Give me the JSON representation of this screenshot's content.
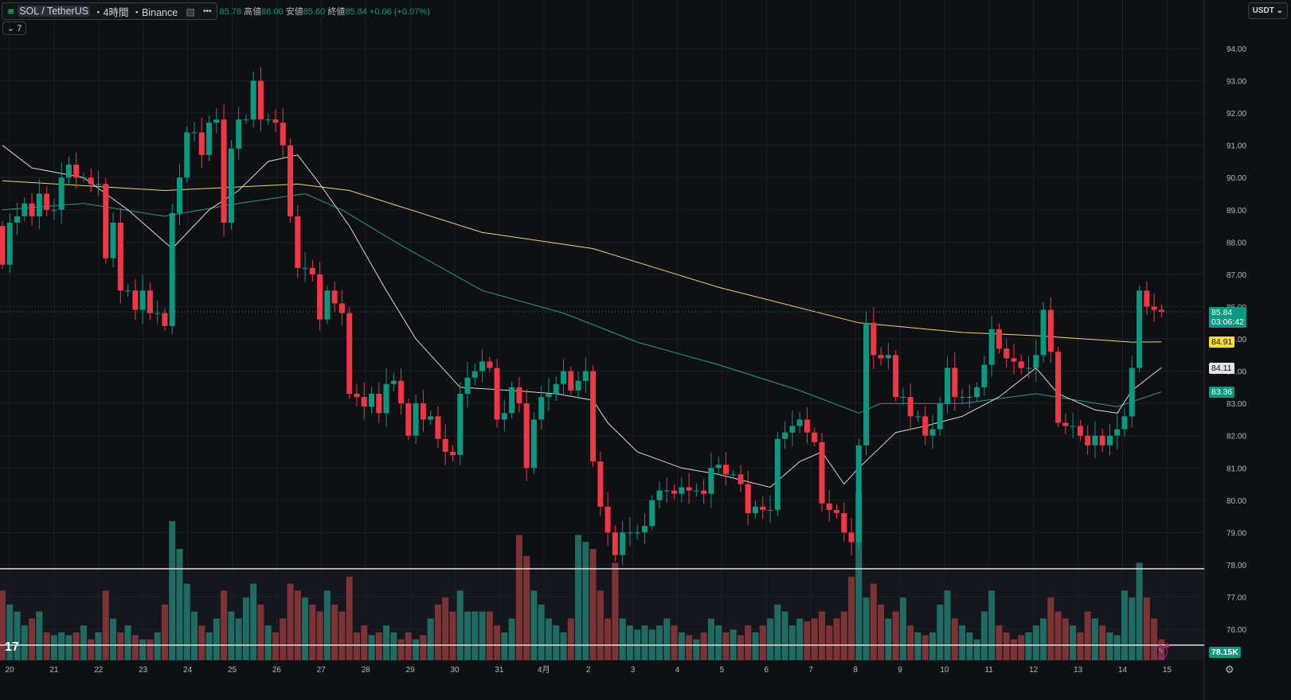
{
  "header": {
    "symbol": "SOL / TetherUS",
    "interval": "・4時間",
    "exchange": "・Binance",
    "more": "•••",
    "open_value": "85.78",
    "high_label": "高値",
    "high_value": "86.00",
    "low_label": "安値",
    "low_value": "85.60",
    "close_label": "終値",
    "close_value": "85.84",
    "change": "+0.06 (+0.07%)",
    "indicator_count": "7",
    "currency": "USDT"
  },
  "badges": {
    "price": "85.84",
    "countdown": "03:06:42",
    "ma_yellow": "84.91",
    "ma_white": "84.11",
    "ma_teal": "83.36",
    "volume": "78.15K"
  },
  "colors": {
    "up": "#089981",
    "down": "#f23645",
    "vol_up": "#1f6b62",
    "vol_down": "#7d3336",
    "ma_white": "#d8d8d8",
    "ma_teal": "#1e9c8a",
    "ma_yellow": "#e6d96a"
  },
  "chart_data": {
    "type": "candlestick",
    "title": "SOL / TetherUS 4h Binance",
    "first_open": 88.5,
    "closes": [
      87.3,
      88.6,
      88.8,
      89.2,
      88.8,
      89.5,
      89.0,
      89.0,
      90.0,
      90.4,
      90.0,
      90.0,
      89.8,
      89.8,
      87.5,
      88.6,
      86.5,
      86.5,
      85.9,
      86.5,
      85.8,
      85.8,
      85.4,
      88.9,
      90.0,
      91.4,
      91.4,
      90.7,
      91.7,
      91.8,
      88.6,
      90.9,
      91.8,
      91.8,
      93.0,
      91.8,
      91.8,
      91.7,
      91.0,
      88.8,
      87.2,
      87.2,
      87.0,
      85.6,
      86.5,
      86.1,
      85.8,
      83.3,
      83.2,
      82.9,
      83.3,
      82.7,
      83.6,
      83.7,
      83.0,
      82.0,
      83.0,
      82.5,
      82.6,
      81.9,
      81.5,
      81.4,
      83.3,
      83.8,
      84.0,
      84.3,
      84.1,
      82.5,
      82.7,
      83.5,
      83.0,
      81.0,
      82.5,
      83.2,
      83.3,
      83.6,
      84.0,
      83.4,
      83.7,
      84.0,
      81.2,
      79.8,
      79.0,
      78.3,
      79.0,
      79.0,
      79.0,
      79.2,
      80.0,
      80.3,
      80.3,
      80.2,
      80.4,
      80.3,
      80.3,
      80.2,
      81.0,
      81.1,
      80.8,
      80.8,
      80.5,
      79.6,
      79.8,
      79.7,
      79.7,
      81.9,
      82.1,
      82.3,
      82.5,
      82.1,
      81.8,
      79.9,
      79.7,
      79.6,
      79.0,
      78.7,
      81.7,
      85.5,
      84.5,
      84.4,
      84.5,
      83.2,
      83.2,
      82.6,
      82.6,
      82.0,
      82.2,
      83.0,
      84.1,
      83.2,
      83.2,
      83.2,
      83.5,
      84.2,
      85.3,
      84.7,
      84.4,
      84.3,
      84.1,
      84.1,
      84.5,
      85.9,
      84.6,
      82.4,
      82.3,
      82.3,
      82.0,
      81.7,
      82.0,
      81.7,
      82.0,
      82.2,
      82.6,
      84.1,
      86.5,
      86.0,
      85.9,
      85.84
    ],
    "volumes": [
      50,
      40,
      35,
      25,
      30,
      35,
      20,
      18,
      20,
      18,
      20,
      25,
      15,
      20,
      50,
      30,
      20,
      25,
      18,
      15,
      15,
      20,
      40,
      100,
      80,
      55,
      35,
      25,
      20,
      30,
      50,
      35,
      30,
      45,
      55,
      40,
      25,
      20,
      30,
      55,
      50,
      45,
      40,
      35,
      50,
      40,
      35,
      60,
      20,
      25,
      18,
      20,
      25,
      20,
      15,
      20,
      15,
      18,
      30,
      40,
      45,
      35,
      50,
      35,
      35,
      35,
      35,
      25,
      20,
      30,
      90,
      75,
      50,
      40,
      30,
      25,
      20,
      30,
      90,
      85,
      80,
      50,
      30,
      70,
      30,
      25,
      22,
      25,
      22,
      25,
      30,
      25,
      20,
      18,
      15,
      20,
      30,
      25,
      20,
      22,
      18,
      25,
      20,
      25,
      30,
      40,
      35,
      25,
      30,
      28,
      30,
      35,
      25,
      30,
      35,
      60,
      120,
      45,
      55,
      40,
      30,
      35,
      45,
      25,
      20,
      18,
      20,
      40,
      50,
      30,
      25,
      20,
      15,
      35,
      50,
      25,
      20,
      15,
      18,
      20,
      25,
      30,
      45,
      35,
      30,
      25,
      20,
      35,
      30,
      25,
      20,
      18,
      50,
      45,
      70,
      45,
      30,
      15
    ],
    "ma_white": [
      [
        0,
        91.0
      ],
      [
        4,
        90.3
      ],
      [
        11,
        90.0
      ],
      [
        17,
        89.0
      ],
      [
        23,
        87.8
      ],
      [
        28,
        89.0
      ],
      [
        32,
        89.6
      ],
      [
        36,
        90.5
      ],
      [
        40,
        90.7
      ],
      [
        43,
        89.8
      ],
      [
        47,
        88.5
      ],
      [
        52,
        86.5
      ],
      [
        56,
        85.0
      ],
      [
        62,
        83.5
      ],
      [
        69,
        83.4
      ],
      [
        75,
        83.3
      ],
      [
        80,
        83.1
      ],
      [
        82,
        82.4
      ],
      [
        86,
        81.5
      ],
      [
        92,
        81.0
      ],
      [
        97,
        80.8
      ],
      [
        104,
        80.4
      ],
      [
        108,
        81.2
      ],
      [
        111,
        81.5
      ],
      [
        114,
        80.5
      ],
      [
        116,
        81.0
      ],
      [
        121,
        82.1
      ],
      [
        125,
        82.3
      ],
      [
        130,
        82.6
      ],
      [
        135,
        83.2
      ],
      [
        140,
        84.1
      ],
      [
        143,
        83.3
      ],
      [
        148,
        82.8
      ],
      [
        151,
        82.7
      ],
      [
        153,
        83.4
      ],
      [
        157,
        84.11
      ]
    ],
    "ma_teal": [
      [
        0,
        89.0
      ],
      [
        11,
        89.2
      ],
      [
        22,
        88.8
      ],
      [
        32,
        89.2
      ],
      [
        41,
        89.5
      ],
      [
        46,
        89.0
      ],
      [
        54,
        87.9
      ],
      [
        65,
        86.5
      ],
      [
        76,
        85.8
      ],
      [
        86,
        84.9
      ],
      [
        97,
        84.2
      ],
      [
        108,
        83.4
      ],
      [
        116,
        82.7
      ],
      [
        119,
        83.0
      ],
      [
        130,
        83.0
      ],
      [
        140,
        83.3
      ],
      [
        151,
        82.9
      ],
      [
        157,
        83.36
      ]
    ],
    "ma_yellow": [
      [
        0,
        89.9
      ],
      [
        22,
        89.6
      ],
      [
        40,
        89.8
      ],
      [
        47,
        89.6
      ],
      [
        65,
        88.3
      ],
      [
        80,
        87.8
      ],
      [
        97,
        86.6
      ],
      [
        116,
        85.5
      ],
      [
        130,
        85.2
      ],
      [
        140,
        85.1
      ],
      [
        153,
        84.9
      ],
      [
        157,
        84.91
      ]
    ],
    "y_ticks": [
      "94.00",
      "93.00",
      "92.00",
      "91.00",
      "90.00",
      "89.00",
      "88.00",
      "87.00",
      "86.00",
      "85.00",
      "84.00",
      "83.00",
      "82.00",
      "81.00",
      "80.00",
      "79.00",
      "78.00",
      "77.00",
      "76.00"
    ],
    "x_ticks": [
      "20",
      "21",
      "22",
      "23",
      "24",
      "25",
      "26",
      "27",
      "28",
      "29",
      "30",
      "31",
      "4月",
      "2",
      "3",
      "4",
      "5",
      "6",
      "7",
      "8",
      "9",
      "10",
      "11",
      "12",
      "13",
      "14",
      "15"
    ],
    "ylim": [
      75.5,
      94.5
    ]
  }
}
